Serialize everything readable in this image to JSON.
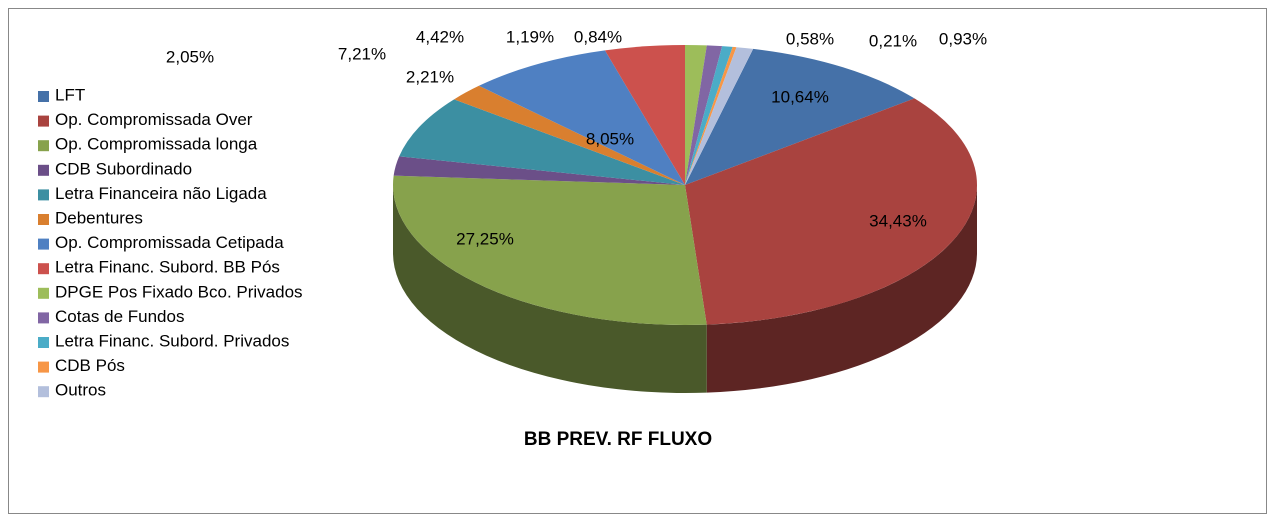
{
  "chart_data": {
    "type": "pie",
    "title": "BB PREV. RF FLUXO",
    "categories": [
      "LFT",
      "Op. Compromissada Over",
      "Op. Compromissada longa",
      "CDB Subordinado",
      "Letra Financeira não Ligada",
      "Debentures",
      "Op. Compromissada Cetipada",
      "Letra Financ. Subord. BB Pós",
      "DPGE Pos Fixado Bco. Privados",
      "Cotas de Fundos",
      "Letra Financ. Subord. Privados",
      "CDB Pós",
      "Outros"
    ],
    "values": [
      10.64,
      34.43,
      27.25,
      2.21,
      7.21,
      2.05,
      8.05,
      4.42,
      1.19,
      0.84,
      0.58,
      0.21,
      0.93
    ],
    "value_labels": [
      "10,64%",
      "34,43%",
      "27,25%",
      "2,21%",
      "7,21%",
      "2,05%",
      "8,05%",
      "4,42%",
      "1,19%",
      "0,84%",
      "0,58%",
      "0,21%",
      "0,93%"
    ],
    "colors": [
      "#4571a8",
      "#a9433f",
      "#87a24c",
      "#6b4f88",
      "#3c8fa2",
      "#d97f2f",
      "#4f80c2",
      "#cc514d",
      "#9dbd5a",
      "#8166a4",
      "#4bacc7",
      "#f79646",
      "#b3bfdc"
    ],
    "legend": "left"
  }
}
